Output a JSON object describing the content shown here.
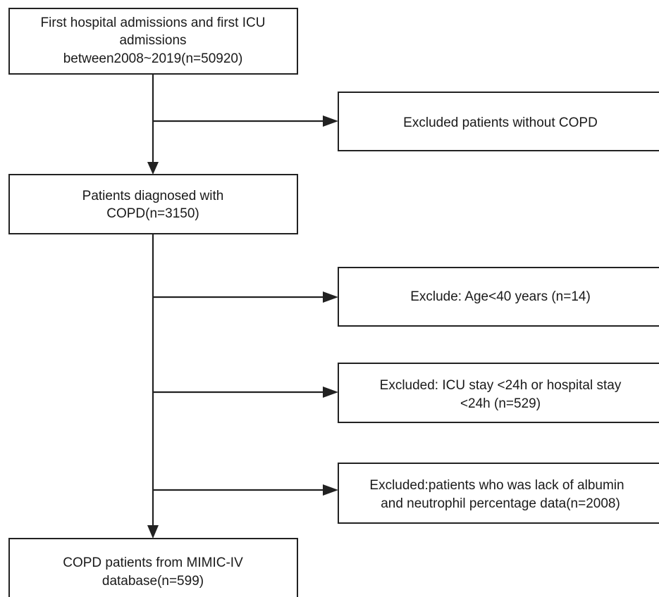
{
  "nodes": [
    {
      "lines": [
        "First hospital admissions and first ICU",
        "admissions",
        "between2008~2019(n=50920)"
      ]
    },
    {
      "lines": [
        "Excluded patients without COPD"
      ]
    },
    {
      "lines": [
        "Patients diagnosed with",
        "COPD(n=3150)"
      ]
    },
    {
      "lines": [
        "Exclude: Age<40 years (n=14)"
      ]
    },
    {
      "lines": [
        "Excluded: ICU stay <24h or hospital stay",
        "<24h (n=529)"
      ]
    },
    {
      "lines": [
        "Excluded:patients who was lack of albumin",
        "and neutrophil percentage data(n=2008)"
      ]
    },
    {
      "lines": [
        "COPD patients from MIMIC-IV",
        "database(n=599)"
      ]
    }
  ]
}
